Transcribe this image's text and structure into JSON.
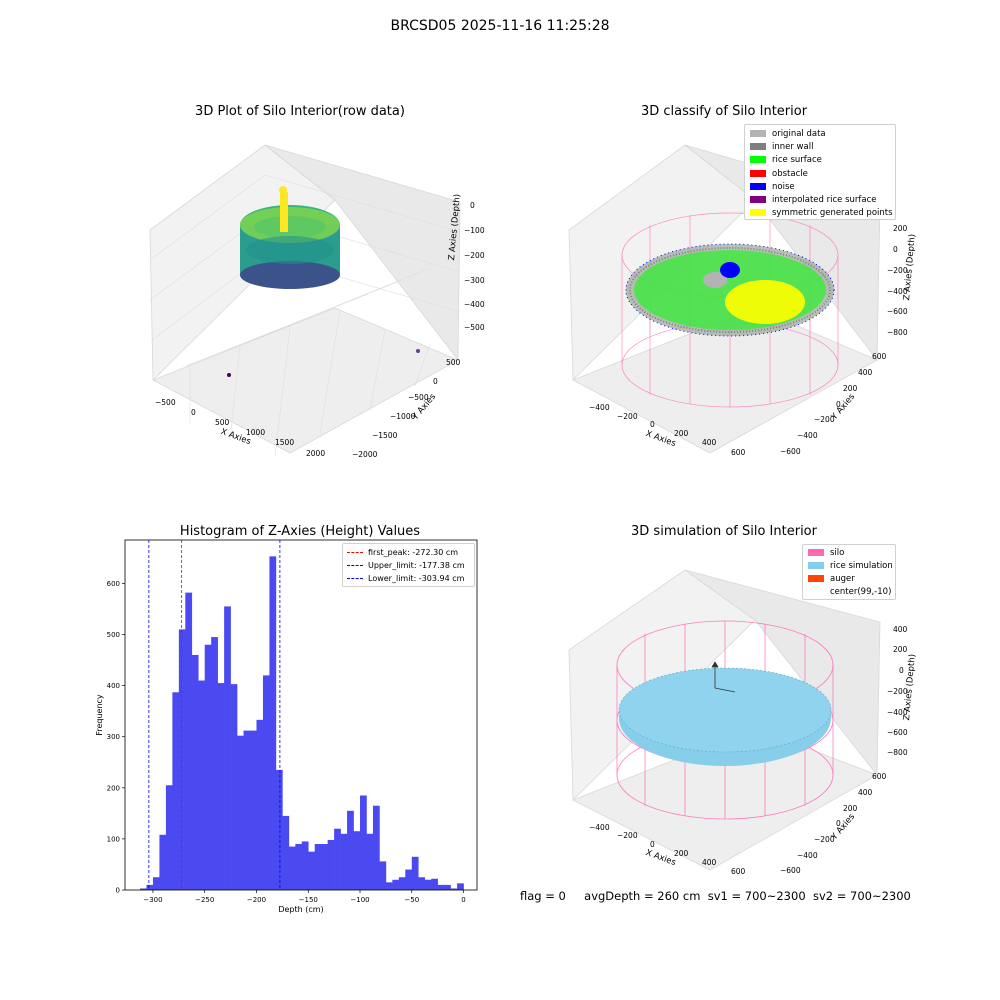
{
  "suptitle": "BRCSD05 2025-11-16 11:25:28",
  "colors": {
    "hist_bar": "#4a4af0",
    "peak_line": "#ff0000",
    "limit_line": "#0000ff",
    "silo": "#ff69b4",
    "rice_simulation": "#87ceeb",
    "auger": "#ff4500",
    "original_data": "#b3b3b3",
    "inner_wall": "#808080",
    "rice_surface": "#00ff00",
    "obstacle": "#ff0000",
    "noise": "#0000ff",
    "interpolated_rice_surface": "#800080",
    "symmetric_generated_points": "#ffff00"
  },
  "chart_data": [
    {
      "type": "scatter",
      "title": "3D Plot of Silo Interior(row data)",
      "xlabel": "X Axies",
      "ylabel": "Y Axies",
      "zlabel": "Z Axies (Depth)",
      "x_ticks": [
        "−500",
        "0",
        "500",
        "1000",
        "1500",
        "2000"
      ],
      "y_ticks": [
        "500",
        "0",
        "−500",
        "−1000",
        "−1500",
        "−2000"
      ],
      "z_ticks": [
        "0",
        "−100",
        "−200",
        "−300",
        "−400",
        "−500"
      ],
      "colormap": "viridis"
    },
    {
      "type": "scatter",
      "title": "3D classify of Silo Interior",
      "xlabel": "X Axies",
      "ylabel": "Y Axies",
      "zlabel": "Z Axies (Depth)",
      "x_ticks": [
        "−400",
        "−200",
        "0",
        "200",
        "400",
        "600"
      ],
      "y_ticks": [
        "600",
        "400",
        "200",
        "0",
        "−200",
        "−400",
        "−600"
      ],
      "z_ticks": [
        "200",
        "0",
        "−200",
        "−400",
        "−600",
        "−800"
      ],
      "legend_position": "top-right",
      "legend": [
        {
          "label": "original data",
          "color": "#b3b3b3"
        },
        {
          "label": "inner wall",
          "color": "#808080"
        },
        {
          "label": "rice surface",
          "color": "#00ff00"
        },
        {
          "label": "obstacle",
          "color": "#ff0000"
        },
        {
          "label": "noise",
          "color": "#0000ff"
        },
        {
          "label": "interpolated rice surface",
          "color": "#800080"
        },
        {
          "label": "symmetric generated points",
          "color": "#ffff00"
        }
      ]
    },
    {
      "type": "bar",
      "title": "Histogram of Z-Axies (Height) Values",
      "xlabel": "Depth (cm)",
      "ylabel": "Frequency",
      "xlim": [
        -327,
        13
      ],
      "ylim": [
        0,
        685
      ],
      "x_ticks": [
        -300,
        -250,
        -200,
        -150,
        -100,
        -50,
        0
      ],
      "y_ticks": [
        0,
        100,
        200,
        300,
        400,
        500,
        600
      ],
      "bin_start": -312.5,
      "bin_width": 6.25,
      "values": [
        3,
        10,
        25,
        108,
        205,
        387,
        510,
        582,
        460,
        410,
        480,
        495,
        405,
        555,
        403,
        302,
        312,
        312,
        333,
        420,
        653,
        235,
        145,
        85,
        90,
        95,
        75,
        90,
        90,
        98,
        120,
        110,
        155,
        115,
        185,
        110,
        165,
        56,
        15,
        20,
        25,
        40,
        65,
        25,
        20,
        22,
        10,
        10,
        3,
        13
      ],
      "legend_position": "top-right",
      "lines": [
        {
          "label": "first_peak: -272.30 cm",
          "x": -272.3,
          "color": "#ff0000"
        },
        {
          "label": "Upper_limit: -177.38 cm",
          "x": -177.38,
          "color": "#0000ff"
        },
        {
          "label": "Lower_limit: -303.94 cm",
          "x": -303.94,
          "color": "#0000ff"
        }
      ]
    },
    {
      "type": "scatter",
      "title": "3D simulation of Silo Interior",
      "xlabel": "X Axies",
      "ylabel": "Y Axies",
      "zlabel": "Z Axies (Depth)",
      "x_ticks": [
        "−400",
        "−200",
        "0",
        "200",
        "400",
        "600"
      ],
      "y_ticks": [
        "600",
        "400",
        "200",
        "0",
        "−200",
        "−400",
        "−600"
      ],
      "z_ticks": [
        "400",
        "200",
        "0",
        "−200",
        "−400",
        "−600",
        "−800"
      ],
      "legend_position": "top-right",
      "legend": [
        {
          "label": "silo",
          "color": "#ff69b4"
        },
        {
          "label": "rice simulation",
          "color": "#87ceeb"
        },
        {
          "label": "auger",
          "color": "#ff4500"
        },
        {
          "label": "center(99,-10)",
          "color": ""
        }
      ]
    }
  ],
  "footer": {
    "flag": "flag = 0",
    "avg_depth": "avgDepth = 260 cm",
    "sv1": "sv1 = 700~2300",
    "sv2": "sv2 = 700~2300"
  }
}
